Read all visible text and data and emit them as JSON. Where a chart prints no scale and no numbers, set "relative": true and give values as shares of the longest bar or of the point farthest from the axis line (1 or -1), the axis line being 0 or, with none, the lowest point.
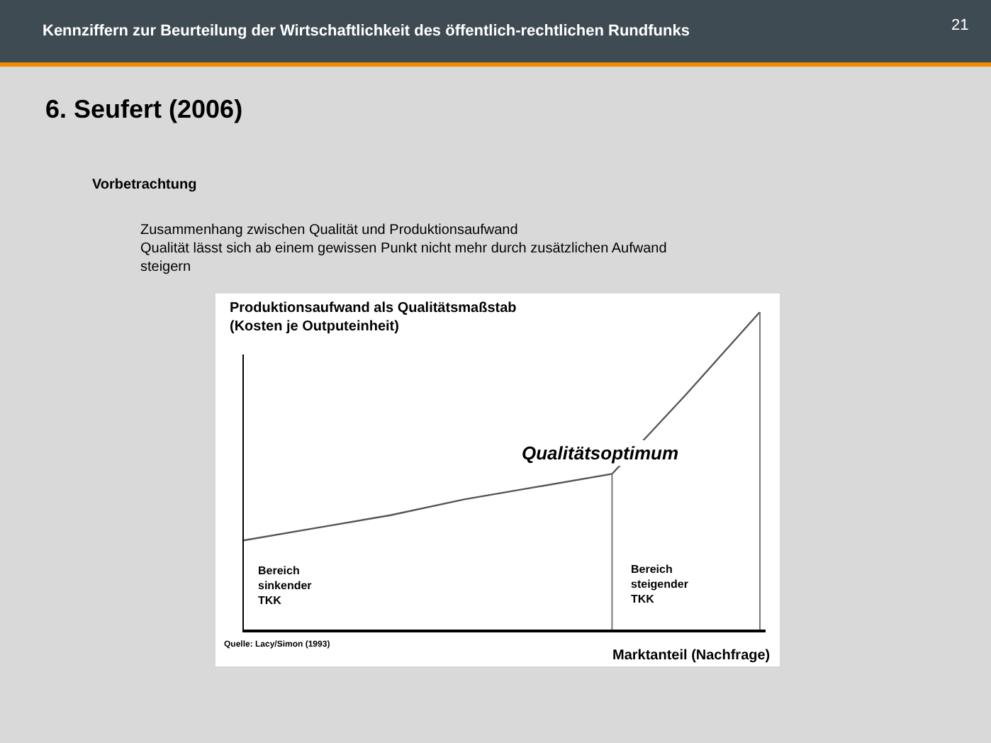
{
  "chart_data": {
    "type": "line",
    "relative": true,
    "title": "Kennziffern zur Beurteilung der Wirtschaftlichkeit des öffentlich-rechtlichen Rundfunks",
    "subtitle": "6. Seufert (2006)",
    "ylabel": "Produktionsaufwand als Qualitätsmaßstab\n(Kosten je Outputeinheit)",
    "xlabel": "Marktanteil (Nachfrage)",
    "categories": [
      null,
      null,
      null,
      null,
      null,
      null,
      null,
      null
    ],
    "series": [
      {
        "color": "#555555",
        "values": [
          0.28,
          0.32,
          0.36,
          0.41,
          0.45,
          0.49,
          0.74,
          1.0
        ]
      }
    ],
    "annotations": [
      "21",
      "Vorbetrachtung",
      "Zusammenhang zwischen Qualität und Produktionsaufwand",
      "Qualität lässt sich ab einem gewissen Punkt nicht mehr durch zusätzlichen Aufwand\nsteigern",
      "Qualitätsoptimum",
      "Bereich\nsinkender\nTKK",
      "Bereich\nsteigender\nTKK",
      "Quelle: Lacy/Simon (1993)"
    ],
    "marker": "none",
    "line_style": "solid"
  }
}
